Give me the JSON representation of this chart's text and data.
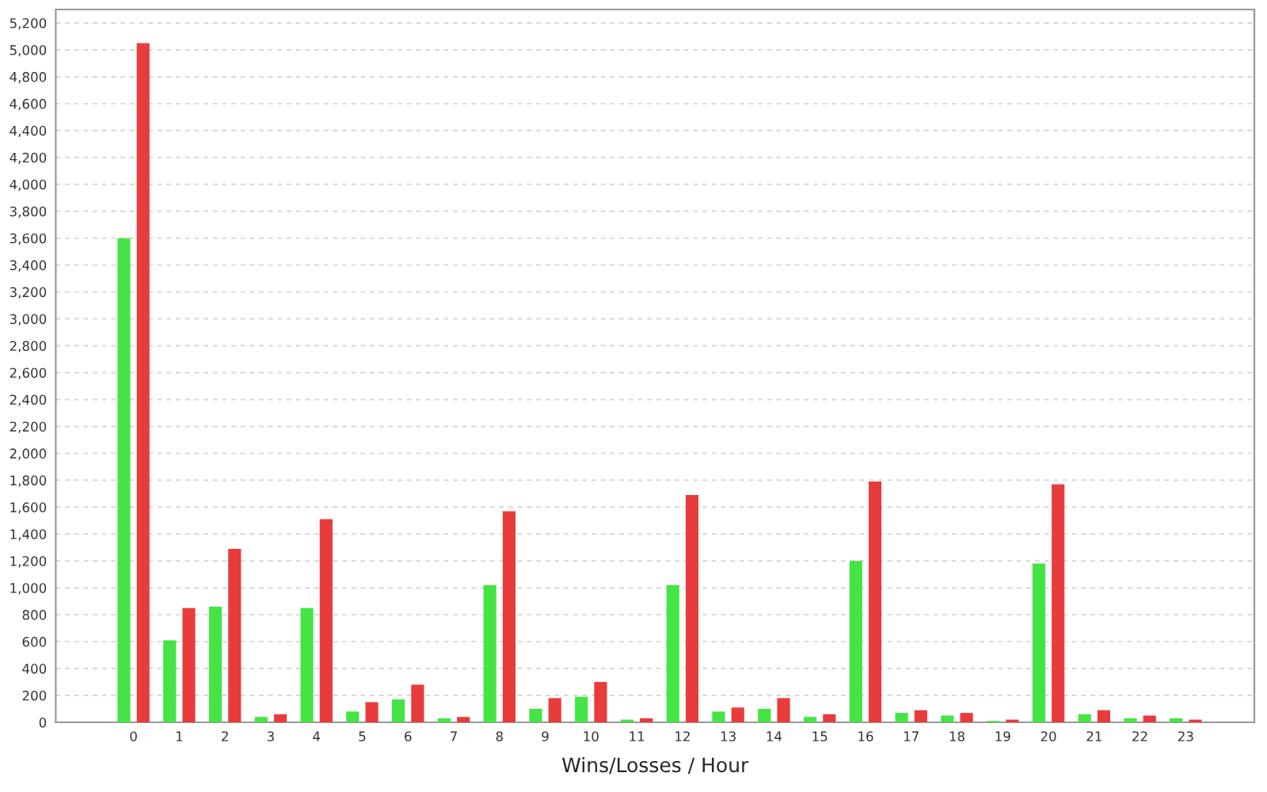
{
  "chart_data": {
    "type": "bar",
    "xlabel": "Wins/Losses / Hour",
    "categories": [
      "0",
      "1",
      "2",
      "3",
      "4",
      "5",
      "6",
      "7",
      "8",
      "9",
      "10",
      "11",
      "12",
      "13",
      "14",
      "15",
      "16",
      "17",
      "18",
      "19",
      "20",
      "21",
      "22",
      "23"
    ],
    "series": [
      {
        "color": "#44e444",
        "values": [
          3600,
          610,
          860,
          40,
          850,
          80,
          170,
          30,
          1020,
          100,
          190,
          20,
          1020,
          80,
          100,
          40,
          1200,
          70,
          50,
          10,
          1180,
          60,
          30,
          30
        ]
      },
      {
        "color": "#e83c3c",
        "values": [
          5050,
          850,
          1290,
          60,
          1510,
          150,
          280,
          40,
          1570,
          180,
          300,
          30,
          1690,
          110,
          180,
          60,
          1790,
          90,
          70,
          20,
          1770,
          90,
          50,
          20
        ]
      }
    ],
    "ylim": [
      0,
      5300
    ],
    "yticks": [
      0,
      {
        "value": 200,
        "label": "200"
      },
      {
        "value": 400,
        "label": "400"
      },
      {
        "value": 600,
        "label": "600"
      },
      {
        "value": 800,
        "label": "800"
      },
      {
        "value": 1000,
        "label": "1,000"
      },
      {
        "value": 1200,
        "label": "1,200"
      },
      {
        "value": 1400,
        "label": "1,400"
      },
      {
        "value": 1600,
        "label": "1,600"
      },
      {
        "value": 1800,
        "label": "1,800"
      },
      {
        "value": 2000,
        "label": "2,000"
      },
      {
        "value": 2200,
        "label": "2,200"
      },
      {
        "value": 2400,
        "label": "2,400"
      },
      {
        "value": 2600,
        "label": "2,600"
      },
      {
        "value": 2800,
        "label": "2,800"
      },
      {
        "value": 3000,
        "label": "3,000"
      },
      {
        "value": 3200,
        "label": "3,200"
      },
      {
        "value": 3400,
        "label": "3,400"
      },
      {
        "value": 3600,
        "label": "3,600"
      },
      {
        "value": 3800,
        "label": "3,800"
      },
      {
        "value": 4000,
        "label": "4,000"
      },
      {
        "value": 4200,
        "label": "4,200"
      },
      {
        "value": 4400,
        "label": "4,400"
      },
      {
        "value": 4600,
        "label": "4,600"
      },
      {
        "value": 4800,
        "label": "4,800"
      },
      {
        "value": 5000,
        "label": "5,000"
      },
      {
        "value": 5200,
        "label": "5,200"
      }
    ],
    "grid": "y",
    "legend": false
  }
}
